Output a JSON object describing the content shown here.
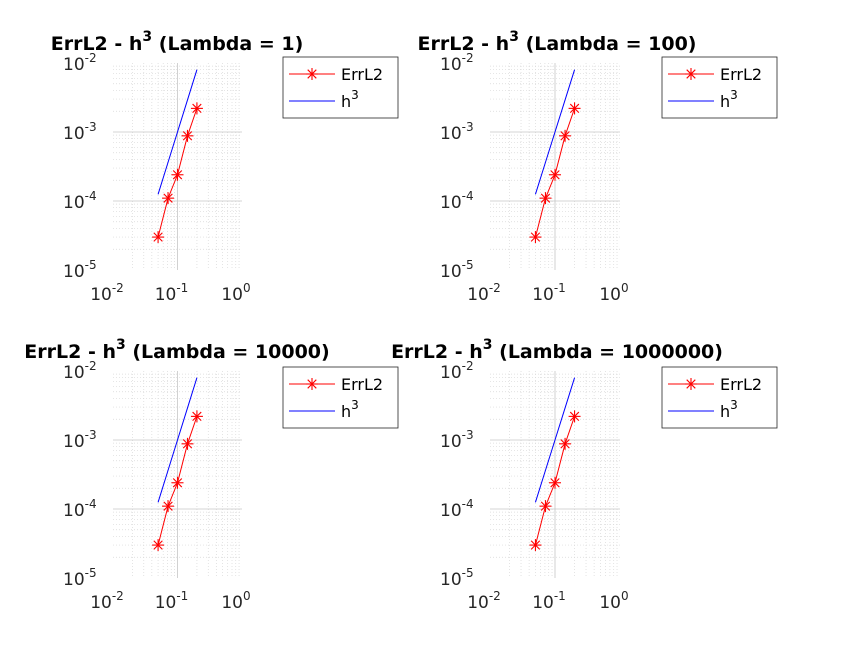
{
  "chart_data": [
    {
      "type": "line",
      "title_prefix": "ErrL2 - h",
      "title_exp": "3",
      "title_suffix": " (Lambda = 1)",
      "xscale": "log",
      "yscale": "log",
      "xlim": [
        0.01,
        1
      ],
      "ylim": [
        1e-05,
        0.01
      ],
      "xticks": [
        {
          "base": "10",
          "exp": "-2"
        },
        {
          "base": "10",
          "exp": "-1"
        },
        {
          "base": "10",
          "exp": "0"
        }
      ],
      "yticks": [
        {
          "base": "10",
          "exp": "-5"
        },
        {
          "base": "10",
          "exp": "-4"
        },
        {
          "base": "10",
          "exp": "-3"
        },
        {
          "base": "10",
          "exp": "-2"
        }
      ],
      "grid": true,
      "minor_grid": true,
      "legend_position": "outside-right",
      "series": [
        {
          "name": "ErrL2",
          "color": "#ff0000",
          "marker": "asterisk",
          "x": [
            0.05,
            0.0714,
            0.1,
            0.1429,
            0.2
          ],
          "y": [
            3e-05,
            0.00011,
            0.00024,
            0.00088,
            0.0022
          ]
        },
        {
          "name_base": "h",
          "name_exp": "3",
          "color": "#0000ff",
          "marker": "none",
          "x": [
            0.05,
            0.0714,
            0.1,
            0.1429,
            0.2
          ],
          "y": [
            0.000125,
            0.000364,
            0.001,
            0.002915,
            0.008
          ]
        }
      ]
    },
    {
      "type": "line",
      "title_prefix": "ErrL2 - h",
      "title_exp": "3",
      "title_suffix": " (Lambda = 100)",
      "xscale": "log",
      "yscale": "log",
      "xlim": [
        0.01,
        1
      ],
      "ylim": [
        1e-05,
        0.01
      ],
      "xticks": [
        {
          "base": "10",
          "exp": "-2"
        },
        {
          "base": "10",
          "exp": "-1"
        },
        {
          "base": "10",
          "exp": "0"
        }
      ],
      "yticks": [
        {
          "base": "10",
          "exp": "-5"
        },
        {
          "base": "10",
          "exp": "-4"
        },
        {
          "base": "10",
          "exp": "-3"
        },
        {
          "base": "10",
          "exp": "-2"
        }
      ],
      "grid": true,
      "minor_grid": true,
      "legend_position": "outside-right",
      "series": [
        {
          "name": "ErrL2",
          "color": "#ff0000",
          "marker": "asterisk",
          "x": [
            0.05,
            0.0714,
            0.1,
            0.1429,
            0.2
          ],
          "y": [
            3e-05,
            0.00011,
            0.00024,
            0.00088,
            0.0022
          ]
        },
        {
          "name_base": "h",
          "name_exp": "3",
          "color": "#0000ff",
          "marker": "none",
          "x": [
            0.05,
            0.0714,
            0.1,
            0.1429,
            0.2
          ],
          "y": [
            0.000125,
            0.000364,
            0.001,
            0.002915,
            0.008
          ]
        }
      ]
    },
    {
      "type": "line",
      "title_prefix": "ErrL2 - h",
      "title_exp": "3",
      "title_suffix": " (Lambda = 10000)",
      "xscale": "log",
      "yscale": "log",
      "xlim": [
        0.01,
        1
      ],
      "ylim": [
        1e-05,
        0.01
      ],
      "xticks": [
        {
          "base": "10",
          "exp": "-2"
        },
        {
          "base": "10",
          "exp": "-1"
        },
        {
          "base": "10",
          "exp": "0"
        }
      ],
      "yticks": [
        {
          "base": "10",
          "exp": "-5"
        },
        {
          "base": "10",
          "exp": "-4"
        },
        {
          "base": "10",
          "exp": "-3"
        },
        {
          "base": "10",
          "exp": "-2"
        }
      ],
      "grid": true,
      "minor_grid": true,
      "legend_position": "outside-right",
      "series": [
        {
          "name": "ErrL2",
          "color": "#ff0000",
          "marker": "asterisk",
          "x": [
            0.05,
            0.0714,
            0.1,
            0.1429,
            0.2
          ],
          "y": [
            3e-05,
            0.00011,
            0.00024,
            0.00088,
            0.0022
          ]
        },
        {
          "name_base": "h",
          "name_exp": "3",
          "color": "#0000ff",
          "marker": "none",
          "x": [
            0.05,
            0.0714,
            0.1,
            0.1429,
            0.2
          ],
          "y": [
            0.000125,
            0.000364,
            0.001,
            0.002915,
            0.008
          ]
        }
      ]
    },
    {
      "type": "line",
      "title_prefix": "ErrL2 - h",
      "title_exp": "3",
      "title_suffix": " (Lambda = 1000000)",
      "xscale": "log",
      "yscale": "log",
      "xlim": [
        0.01,
        1
      ],
      "ylim": [
        1e-05,
        0.01
      ],
      "xticks": [
        {
          "base": "10",
          "exp": "-2"
        },
        {
          "base": "10",
          "exp": "-1"
        },
        {
          "base": "10",
          "exp": "0"
        }
      ],
      "yticks": [
        {
          "base": "10",
          "exp": "-5"
        },
        {
          "base": "10",
          "exp": "-4"
        },
        {
          "base": "10",
          "exp": "-3"
        },
        {
          "base": "10",
          "exp": "-2"
        }
      ],
      "grid": true,
      "minor_grid": true,
      "legend_position": "outside-right",
      "series": [
        {
          "name": "ErrL2",
          "color": "#ff0000",
          "marker": "asterisk",
          "x": [
            0.05,
            0.0714,
            0.1,
            0.1429,
            0.2
          ],
          "y": [
            3e-05,
            0.00011,
            0.00024,
            0.00088,
            0.0022
          ]
        },
        {
          "name_base": "h",
          "name_exp": "3",
          "color": "#0000ff",
          "marker": "none",
          "x": [
            0.05,
            0.0714,
            0.1,
            0.1429,
            0.2
          ],
          "y": [
            0.000125,
            0.000364,
            0.001,
            0.002915,
            0.008
          ]
        }
      ]
    }
  ]
}
